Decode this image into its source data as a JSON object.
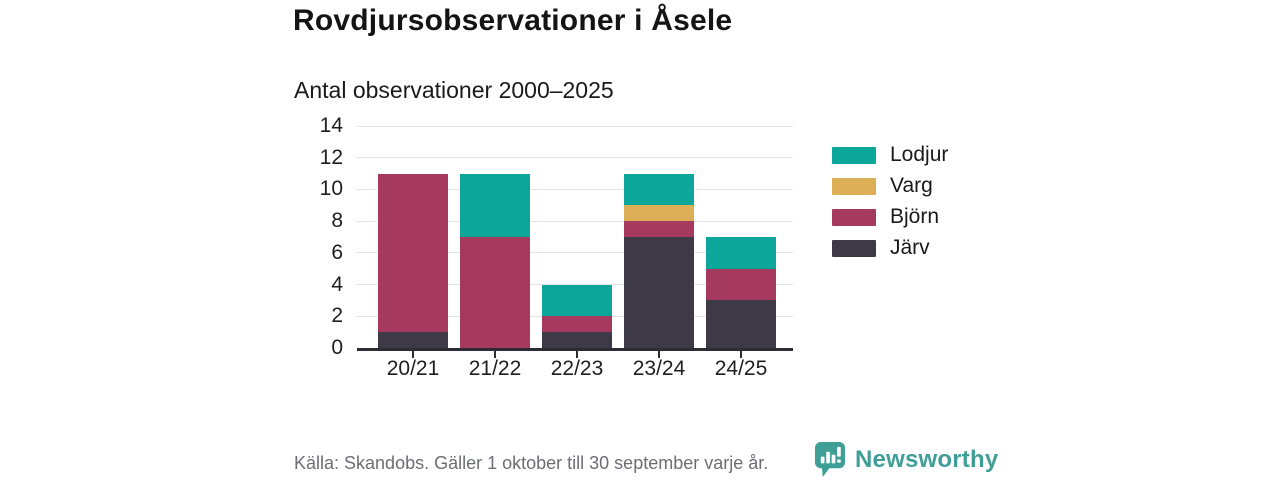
{
  "header": {
    "title": "Rovdjursobservationer i Åsele",
    "subtitle": "Antal observationer 2000–2025"
  },
  "chart_data": {
    "type": "bar",
    "stacked": true,
    "title": "Rovdjursobservationer i Åsele",
    "subtitle": "Antal observationer 2000–2025",
    "categories": [
      "20/21",
      "21/22",
      "22/23",
      "23/24",
      "24/25"
    ],
    "series": [
      {
        "name": "Järv",
        "color": "#3d3947",
        "values": [
          1,
          0,
          1,
          7,
          3
        ]
      },
      {
        "name": "Björn",
        "color": "#a53a5e",
        "values": [
          10,
          7,
          1,
          1,
          2
        ]
      },
      {
        "name": "Varg",
        "color": "#dcaf56",
        "values": [
          0,
          0,
          0,
          1,
          0
        ]
      },
      {
        "name": "Lodjur",
        "color": "#0da69b",
        "values": [
          0,
          4,
          2,
          2,
          2
        ]
      }
    ],
    "stack_totals": [
      11,
      11,
      4,
      11,
      7
    ],
    "xlabel": "",
    "ylabel": "",
    "ylim": [
      0,
      14
    ],
    "yticks": [
      0,
      2,
      4,
      6,
      8,
      10,
      12,
      14
    ],
    "grid": "horizontal",
    "legend_position": "right",
    "legend_order": [
      "Lodjur",
      "Varg",
      "Björn",
      "Järv"
    ]
  },
  "colors": {
    "axis": "#2c2c35",
    "grid": "#e4e4e6",
    "brand_teal": "#3f9f97"
  },
  "footer": {
    "source": "Källa: Skandobs. Gäller 1 oktober till 30 september varje år.",
    "brand": "Newsworthy"
  }
}
